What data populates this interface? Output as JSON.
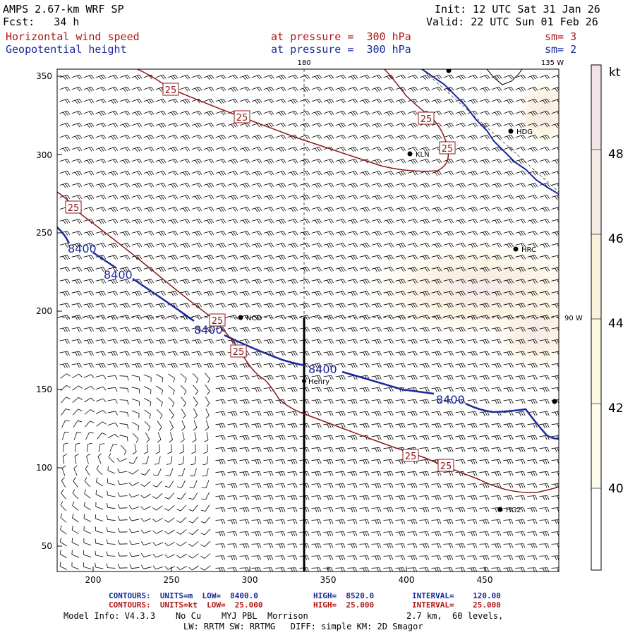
{
  "header": {
    "model": "AMPS 2.67-km WRF SP",
    "fcst": "Fcst:   34 h",
    "init": "Init: 12 UTC Sat 31 Jan 26",
    "valid": "Valid: 22 UTC Sun 01 Feb 26",
    "field1": "Horizontal wind speed",
    "field1_level": "at pressure =  300 hPa",
    "field1_sm": "sm= 3",
    "field2": "Geopotential height",
    "field2_level": "at pressure =  300 hPa",
    "field2_sm": "sm= 2"
  },
  "map": {
    "y_ticks": [
      "350",
      "300",
      "250",
      "200",
      "150",
      "100",
      "50"
    ],
    "x_ticks": [
      "200",
      "250",
      "300",
      "350",
      "400",
      "450"
    ],
    "lon_label_180": "180",
    "lon_label_135w": "135 W",
    "lon_label_90w": "90 W",
    "height_contour_label": "8400",
    "wind_contour_label": "25",
    "stations": [
      "HDG",
      "KLN",
      "HRC",
      "NCO",
      "Henry",
      "HG2"
    ],
    "colors": {
      "height": "#1a2a9a",
      "wind": "#8b1a1a",
      "shade_light": "#fdf7d8",
      "shade_pink": "#f5e8e8"
    }
  },
  "colorbar": {
    "unit": "kt",
    "labels": [
      "48",
      "46",
      "44",
      "42",
      "40"
    ],
    "colors": [
      "#f3e3e6",
      "#f6ece6",
      "#f9f3de",
      "#fcf8dd",
      "#fefcea"
    ]
  },
  "footer": {
    "line1_label": "CONTOURS:  UNITS=m  LOW=  8400.0",
    "line1_high": "HIGH=  8520.0",
    "line1_interval": "INTERVAL=    120.00",
    "line2_label": "CONTOURS:  UNITS=kt  LOW=  25.000",
    "line2_high": "HIGH=  25.000",
    "line2_interval": "INTERVAL=    25.000",
    "model_info": "Model Info: V4.3.3    No Cu    MYJ PBL  Morrison",
    "model_info2": "2.7 km,  60 levels,",
    "model_info3": "LW: RRTM SW: RRTMG   DIFF: simple KM: 2D Smagor"
  }
}
